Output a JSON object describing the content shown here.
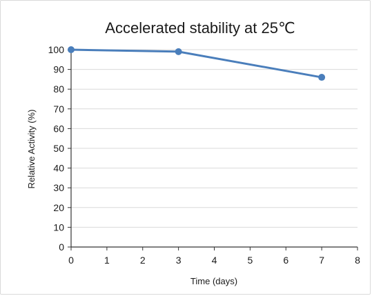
{
  "chart_data": {
    "type": "line",
    "title": "Accelerated stability at 25℃",
    "xlabel": "Time (days)",
    "ylabel": "Relative Activity (%)",
    "xlim": [
      0,
      8
    ],
    "ylim": [
      0,
      100
    ],
    "x_ticks": [
      0,
      1,
      2,
      3,
      4,
      5,
      6,
      7,
      8
    ],
    "y_ticks": [
      0,
      10,
      20,
      30,
      40,
      50,
      60,
      70,
      80,
      90,
      100
    ],
    "grid": "horizontal",
    "legend": "none",
    "series": [
      {
        "color": "#4a7ebb",
        "x": [
          0,
          3,
          7
        ],
        "y": [
          100,
          99,
          86
        ]
      }
    ]
  }
}
